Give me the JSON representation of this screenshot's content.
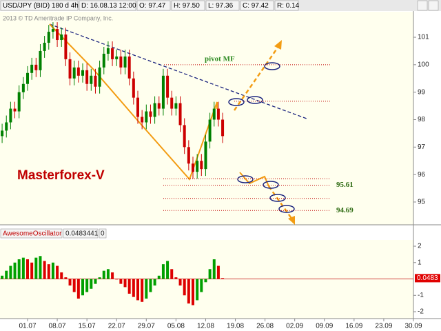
{
  "header": {
    "symbol": "USD/JPY (BID) 180 d 4h",
    "date": "D: 16.08.13 12:00",
    "open": "O: 97.47",
    "high": "H: 97.50",
    "low": "L: 97.36",
    "close": "C: 97.42",
    "range": "R: 0.14"
  },
  "copyright": "2013 © TD Ameritrade IP Company, Inc.",
  "chart_data": [
    {
      "type": "candlestick",
      "title": "Masterforex-V",
      "xlim": [
        -6.5,
        91
      ],
      "ylim": [
        94.17,
        101.93
      ],
      "yticks": [
        95,
        96,
        97,
        98,
        99,
        100,
        101
      ],
      "x": [
        -6,
        -5,
        -4,
        -3,
        -2,
        -1,
        0,
        1,
        2,
        3,
        4,
        5,
        6,
        7,
        8,
        9,
        10,
        11,
        12,
        13,
        14,
        15,
        16,
        17,
        18,
        19,
        20,
        21,
        22,
        23,
        24,
        25,
        26,
        27,
        28,
        29,
        30,
        31,
        32,
        33,
        34,
        35,
        36,
        37,
        38,
        39,
        40,
        41,
        42,
        43,
        44,
        45,
        46
      ],
      "open": [
        97.4,
        97.6,
        97.9,
        98.4,
        98.3,
        99.0,
        99.3,
        99.7,
        100.0,
        99.8,
        100.5,
        100.8,
        101.2,
        101.3,
        100.9,
        101.1,
        100.2,
        99.5,
        99.9,
        99.6,
        99.8,
        99.3,
        99.6,
        99.2,
        99.9,
        100.4,
        100.6,
        100.2,
        100.3,
        99.9,
        100.3,
        99.5,
        98.8,
        98.1,
        97.9,
        98.3,
        98.1,
        98.6,
        98.4,
        99.6,
        98.8,
        98.4,
        98.6,
        97.8,
        97.0,
        96.4,
        96.1,
        96.5,
        96.2,
        97.2,
        98.0,
        98.4,
        98.0
      ],
      "high": [
        97.85,
        98.15,
        98.65,
        98.65,
        99.25,
        99.55,
        99.95,
        100.25,
        100.25,
        100.75,
        101.05,
        101.45,
        101.55,
        101.55,
        101.35,
        101.35,
        100.45,
        100.15,
        100.15,
        100.05,
        100.05,
        99.85,
        99.85,
        100.15,
        100.65,
        100.85,
        100.85,
        100.55,
        100.55,
        100.55,
        100.55,
        99.75,
        99.05,
        98.35,
        98.55,
        98.55,
        98.85,
        98.85,
        99.85,
        99.85,
        99.05,
        98.85,
        98.85,
        98.05,
        97.25,
        96.65,
        96.75,
        96.75,
        97.45,
        98.25,
        98.65,
        98.65,
        98.25
      ],
      "low": [
        97.15,
        97.35,
        97.65,
        98.05,
        98.05,
        98.75,
        99.05,
        99.45,
        99.55,
        99.55,
        100.25,
        100.55,
        100.95,
        100.65,
        100.65,
        99.95,
        99.25,
        99.25,
        99.35,
        99.35,
        99.05,
        99.05,
        98.95,
        98.95,
        99.65,
        100.15,
        99.95,
        99.95,
        99.65,
        99.65,
        99.25,
        98.55,
        97.85,
        97.65,
        97.65,
        97.85,
        97.85,
        98.15,
        98.15,
        98.55,
        98.15,
        98.15,
        97.55,
        96.75,
        96.15,
        95.85,
        95.85,
        95.95,
        95.95,
        96.95,
        97.75,
        97.75,
        97.15
      ],
      "close": [
        97.6,
        97.9,
        98.4,
        98.3,
        99.0,
        99.3,
        99.7,
        100.0,
        99.8,
        100.5,
        100.8,
        101.2,
        101.3,
        100.9,
        101.1,
        100.2,
        99.5,
        99.9,
        99.6,
        99.8,
        99.3,
        99.6,
        99.2,
        99.9,
        100.4,
        100.6,
        100.2,
        100.3,
        99.9,
        100.3,
        99.5,
        98.8,
        98.1,
        97.9,
        98.3,
        98.1,
        98.6,
        98.4,
        99.6,
        98.8,
        98.4,
        98.6,
        97.8,
        97.0,
        96.4,
        96.1,
        96.5,
        96.2,
        97.2,
        98.0,
        98.4,
        98.0,
        97.4
      ],
      "up_color": "#008000",
      "down_color": "#cc0000",
      "levels": [
        {
          "value": 100.0,
          "label": "pivot MF"
        },
        {
          "value": 98.67
        },
        {
          "value": 95.85
        },
        {
          "value": 95.61,
          "label": "95.61"
        },
        {
          "value": 95.13
        },
        {
          "value": 94.69,
          "label": "94.69"
        }
      ]
    },
    {
      "type": "bar",
      "title": "AwesomeOscillator",
      "readout": "0.0483441",
      "param": "0",
      "marker_label": "0.0483",
      "xlim": [
        -6.5,
        91
      ],
      "ylim": [
        -2.42,
        2.38
      ],
      "yticks": [
        -2,
        -1,
        1,
        2
      ],
      "xticks": [
        {
          "value": 0,
          "label": "01.07"
        },
        {
          "value": 7,
          "label": "08.07"
        },
        {
          "value": 14,
          "label": "15.07"
        },
        {
          "value": 21,
          "label": "22.07"
        },
        {
          "value": 28,
          "label": "29.07"
        },
        {
          "value": 35,
          "label": "05.08"
        },
        {
          "value": 42,
          "label": "12.08"
        },
        {
          "value": 49,
          "label": "19.08"
        },
        {
          "value": 56,
          "label": "26.08"
        },
        {
          "value": 63,
          "label": "02.09"
        },
        {
          "value": 70,
          "label": "09.09"
        },
        {
          "value": 77,
          "label": "16.09"
        },
        {
          "value": 84,
          "label": "23.09"
        },
        {
          "value": 91,
          "label": "30.09"
        }
      ],
      "x": [
        -6,
        -5,
        -4,
        -3,
        -2,
        -1,
        0,
        1,
        2,
        3,
        4,
        5,
        6,
        7,
        8,
        9,
        10,
        11,
        12,
        13,
        14,
        15,
        16,
        17,
        18,
        19,
        20,
        21,
        22,
        23,
        24,
        25,
        26,
        27,
        28,
        29,
        30,
        31,
        32,
        33,
        34,
        35,
        36,
        37,
        38,
        39,
        40,
        41,
        42,
        43,
        44,
        45,
        46
      ],
      "values": [
        0.2,
        0.5,
        0.8,
        1.0,
        1.2,
        1.3,
        1.2,
        1.0,
        1.3,
        1.4,
        1.1,
        0.9,
        1.0,
        0.8,
        0.4,
        0.1,
        -0.4,
        -0.8,
        -1.2,
        -1.0,
        -0.8,
        -0.6,
        -0.3,
        0.1,
        0.5,
        0.6,
        0.4,
        0.0,
        -0.3,
        -0.5,
        -0.9,
        -1.1,
        -1.3,
        -1.4,
        -1.2,
        -0.8,
        -0.4,
        0.2,
        0.9,
        1.1,
        0.6,
        0.1,
        -0.4,
        -1.0,
        -1.5,
        -1.6,
        -1.3,
        -0.8,
        -0.2,
        0.6,
        1.2,
        0.8,
        0.0483
      ],
      "up_color": "#00a000",
      "down_color": "#dd0000"
    }
  ]
}
